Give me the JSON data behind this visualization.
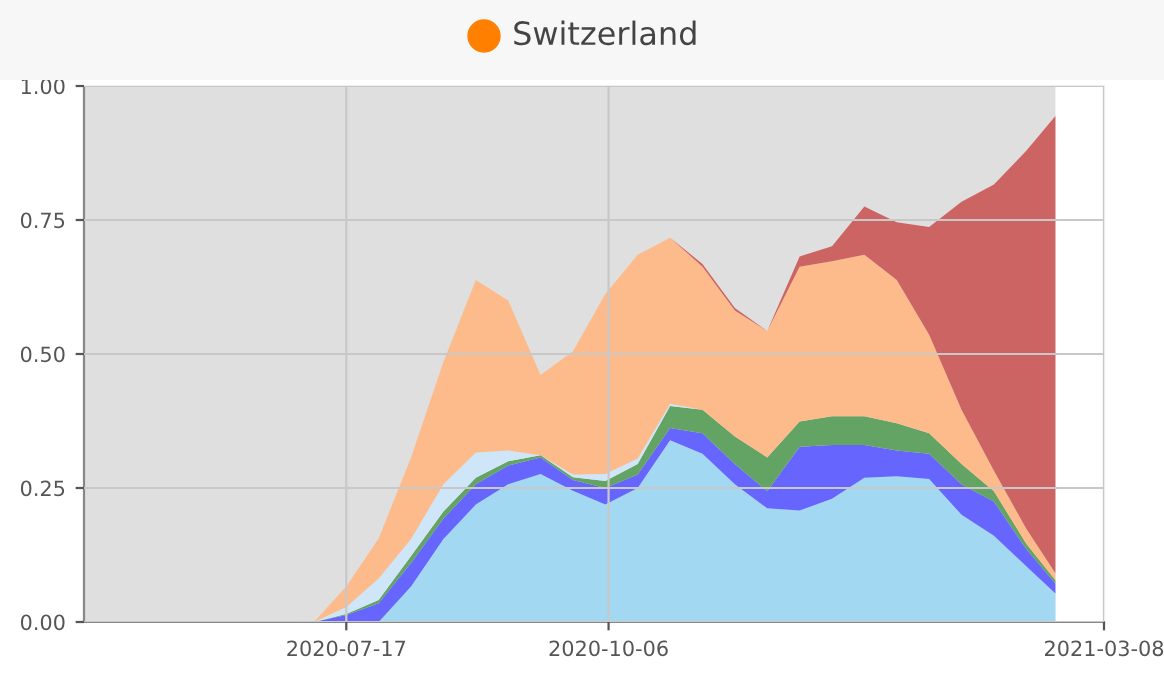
{
  "chart_data": {
    "type": "area",
    "stacked": true,
    "title": "Switzerland",
    "x": [
      "2020-07-07",
      "2020-07-17",
      "2020-07-27",
      "2020-08-06",
      "2020-08-16",
      "2020-08-26",
      "2020-09-05",
      "2020-09-15",
      "2020-09-25",
      "2020-10-05",
      "2020-10-15",
      "2020-10-25",
      "2020-11-04",
      "2020-11-14",
      "2020-11-24",
      "2020-12-04",
      "2020-12-14",
      "2020-12-24",
      "2021-01-03",
      "2021-01-13",
      "2021-01-23",
      "2021-02-02",
      "2021-02-12",
      "2021-02-21"
    ],
    "series": [
      {
        "color": "#a3d8f2",
        "values": [
          0,
          0,
          0,
          0.066,
          0.155,
          0.219,
          0.257,
          0.276,
          0.245,
          0.219,
          0.25,
          0.339,
          0.314,
          0.257,
          0.212,
          0.208,
          0.23,
          0.269,
          0.272,
          0.267,
          0.2,
          0.161,
          0.104,
          0.053
        ]
      },
      {
        "color": "#6666ff",
        "values": [
          0,
          0.013,
          0.035,
          0.044,
          0.038,
          0.038,
          0.035,
          0.031,
          0.02,
          0.031,
          0.025,
          0.023,
          0.038,
          0.038,
          0.032,
          0.119,
          0.1,
          0.061,
          0.048,
          0.047,
          0.057,
          0.064,
          0.032,
          0.019
        ]
      },
      {
        "color": "#63a363",
        "values": [
          0,
          0.002,
          0.006,
          0.013,
          0.013,
          0.012,
          0.008,
          0.004,
          0.005,
          0.013,
          0.02,
          0.041,
          0.044,
          0.051,
          0.063,
          0.047,
          0.054,
          0.054,
          0.051,
          0.038,
          0.038,
          0.019,
          0.01,
          0.006
        ]
      },
      {
        "color": "#cfe6f8",
        "values": [
          0,
          0.013,
          0.04,
          0.032,
          0.051,
          0.047,
          0.02,
          0,
          0.005,
          0.013,
          0.01,
          0.004,
          0,
          0,
          0,
          0,
          0,
          0,
          0,
          0,
          0,
          0,
          0,
          0
        ]
      },
      {
        "color": "#fdbb8c",
        "values": [
          0,
          0.038,
          0.075,
          0.152,
          0.228,
          0.322,
          0.28,
          0.15,
          0.23,
          0.336,
          0.38,
          0.31,
          0.267,
          0.235,
          0.236,
          0.289,
          0.289,
          0.301,
          0.267,
          0.184,
          0.101,
          0.038,
          0.028,
          0.013
        ]
      },
      {
        "color": "#cd6464",
        "values": [
          0,
          0,
          0,
          0,
          0,
          0,
          0,
          0,
          0,
          0,
          0,
          0,
          0.005,
          0.005,
          0,
          0.019,
          0.028,
          0.09,
          0.108,
          0.201,
          0.388,
          0.534,
          0.705,
          0.853
        ]
      }
    ],
    "xlim": [
      "2020-04-27",
      "2021-03-08"
    ],
    "xticks": [
      {
        "value": "2020-07-17",
        "label": "2020-07-17"
      },
      {
        "value": "2020-10-06",
        "label": "2020-10-06"
      },
      {
        "value": "2021-03-08",
        "label": "2021-03-08"
      }
    ],
    "ylim": [
      0,
      1
    ],
    "yticks": [
      {
        "value": 0,
        "label": "0.00"
      },
      {
        "value": 0.25,
        "label": "0.25"
      },
      {
        "value": 0.5,
        "label": "0.50"
      },
      {
        "value": 0.75,
        "label": "0.75"
      },
      {
        "value": 1,
        "label": "1.00"
      }
    ],
    "bands": [
      {
        "axis": "x",
        "from": "2020-04-27",
        "to": "2021-02-21",
        "color": "#dfdfdf"
      }
    ],
    "grid": true
  }
}
